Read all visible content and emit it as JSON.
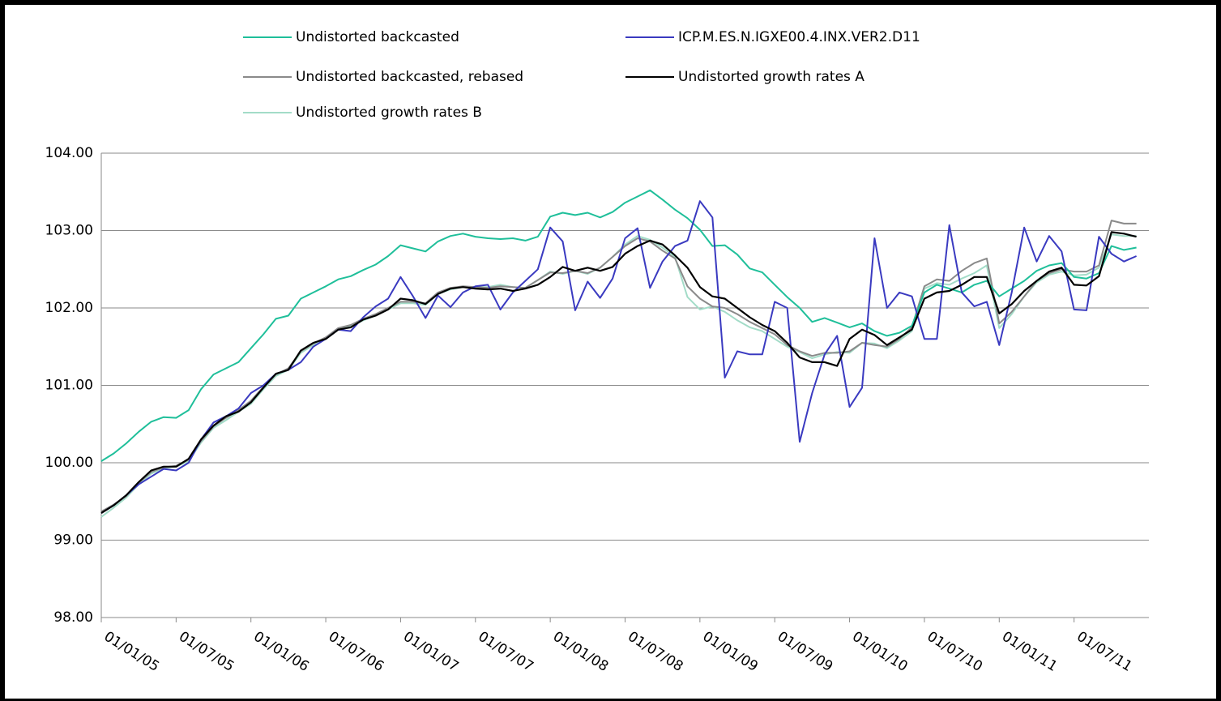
{
  "chart_data": {
    "type": "line",
    "categories": [
      "01/01/05",
      null,
      null,
      null,
      null,
      null,
      "01/07/05",
      null,
      null,
      null,
      null,
      null,
      "01/01/06",
      null,
      null,
      null,
      null,
      null,
      "01/07/06",
      null,
      null,
      null,
      null,
      null,
      "01/01/07",
      null,
      null,
      null,
      null,
      null,
      "01/07/07",
      null,
      null,
      null,
      null,
      null,
      "01/01/08",
      null,
      null,
      null,
      null,
      null,
      "01/07/08",
      null,
      null,
      null,
      null,
      null,
      "01/01/09",
      null,
      null,
      null,
      null,
      null,
      "01/07/09",
      null,
      null,
      null,
      null,
      null,
      "01/01/10",
      null,
      null,
      null,
      null,
      null,
      "01/07/10",
      null,
      null,
      null,
      null,
      null,
      "01/01/11",
      null,
      null,
      null,
      null,
      null,
      "01/07/11",
      null,
      null,
      null,
      null,
      null
    ],
    "series": [
      {
        "name": "Undistorted backcasted",
        "color": "#1fbf9a",
        "values": [
          100.02,
          100.12,
          100.25,
          100.4,
          100.53,
          100.59,
          100.58,
          100.68,
          100.95,
          101.14,
          101.22,
          101.3,
          101.48,
          101.66,
          101.86,
          101.9,
          102.12,
          102.2,
          102.28,
          102.37,
          102.41,
          102.49,
          102.56,
          102.67,
          102.81,
          102.77,
          102.73,
          102.86,
          102.93,
          102.96,
          102.92,
          102.9,
          102.89,
          102.9,
          102.87,
          102.92,
          103.18,
          103.23,
          103.2,
          103.23,
          103.17,
          103.24,
          103.36,
          103.44,
          103.52,
          103.4,
          103.27,
          103.16,
          103.01,
          102.8,
          102.81,
          102.69,
          102.51,
          102.46,
          102.3,
          102.14,
          102.0,
          101.82,
          101.87,
          101.81,
          101.75,
          101.8,
          101.7,
          101.64,
          101.68,
          101.77,
          102.2,
          102.3,
          102.25,
          102.2,
          102.3,
          102.35,
          102.15,
          102.25,
          102.35,
          102.48,
          102.55,
          102.58,
          102.4,
          102.38,
          102.45,
          102.8,
          102.75,
          102.78
        ]
      },
      {
        "name": "ICP.M.ES.N.IGXE00.4.INX.VER2.D11",
        "color": "#3a3ac0",
        "values": [
          99.35,
          99.45,
          99.58,
          99.72,
          99.82,
          99.92,
          99.9,
          100.0,
          100.3,
          100.52,
          100.6,
          100.7,
          100.9,
          101.0,
          101.15,
          101.2,
          101.3,
          101.5,
          101.6,
          101.72,
          101.7,
          101.88,
          102.02,
          102.12,
          102.4,
          102.15,
          101.87,
          102.16,
          102.01,
          102.2,
          102.28,
          102.3,
          101.98,
          102.2,
          102.35,
          102.5,
          103.04,
          102.86,
          101.97,
          102.34,
          102.13,
          102.38,
          102.9,
          103.03,
          102.26,
          102.6,
          102.8,
          102.87,
          103.38,
          103.17,
          101.1,
          101.44,
          101.4,
          101.4,
          102.08,
          102.0,
          100.27,
          100.9,
          101.4,
          101.64,
          100.72,
          100.97,
          102.9,
          102.0,
          102.2,
          102.15,
          101.6,
          101.6,
          103.07,
          102.2,
          102.02,
          102.08,
          101.52,
          102.2,
          103.04,
          102.6,
          102.93,
          102.73,
          101.98,
          101.97,
          102.92,
          102.7,
          102.6,
          102.67
        ]
      },
      {
        "name": "Undistorted backcasted, rebased",
        "color": "#8a8a8a",
        "values": [
          99.37,
          99.46,
          99.57,
          99.74,
          99.88,
          99.94,
          99.96,
          100.04,
          100.28,
          100.47,
          100.58,
          100.68,
          100.8,
          100.98,
          101.14,
          101.22,
          101.44,
          101.54,
          101.62,
          101.74,
          101.78,
          101.86,
          101.92,
          102.0,
          102.08,
          102.08,
          102.06,
          102.2,
          102.26,
          102.28,
          102.27,
          102.26,
          102.28,
          102.27,
          102.26,
          102.36,
          102.46,
          102.45,
          102.48,
          102.45,
          102.52,
          102.66,
          102.8,
          102.9,
          102.86,
          102.74,
          102.64,
          102.28,
          102.12,
          102.02,
          102.0,
          101.92,
          101.82,
          101.74,
          101.66,
          101.52,
          101.44,
          101.38,
          101.42,
          101.42,
          101.44,
          101.55,
          101.52,
          101.5,
          101.6,
          101.75,
          102.28,
          102.37,
          102.35,
          102.48,
          102.58,
          102.64,
          101.8,
          101.95,
          102.15,
          102.35,
          102.45,
          102.5,
          102.47,
          102.47,
          102.55,
          103.13,
          103.09,
          103.09
        ]
      },
      {
        "name": "Undistorted growth rates A",
        "color": "#000000",
        "values": [
          99.35,
          99.45,
          99.58,
          99.75,
          99.9,
          99.95,
          99.95,
          100.05,
          100.3,
          100.48,
          100.6,
          100.66,
          100.78,
          100.97,
          101.15,
          101.2,
          101.45,
          101.55,
          101.6,
          101.72,
          101.75,
          101.85,
          101.9,
          101.98,
          102.12,
          102.1,
          102.05,
          102.18,
          102.25,
          102.27,
          102.25,
          102.24,
          102.25,
          102.22,
          102.25,
          102.3,
          102.4,
          102.53,
          102.48,
          102.52,
          102.48,
          102.53,
          102.7,
          102.8,
          102.87,
          102.82,
          102.68,
          102.52,
          102.27,
          102.15,
          102.12,
          102.0,
          101.88,
          101.78,
          101.7,
          101.55,
          101.36,
          101.3,
          101.3,
          101.25,
          101.6,
          101.72,
          101.65,
          101.52,
          101.62,
          101.72,
          102.12,
          102.2,
          102.22,
          102.3,
          102.4,
          102.4,
          101.93,
          102.05,
          102.22,
          102.35,
          102.47,
          102.52,
          102.3,
          102.29,
          102.41,
          102.98,
          102.96,
          102.92
        ]
      },
      {
        "name": "Undistorted growth rates B",
        "color": "#a3dcc8",
        "values": [
          99.3,
          99.42,
          99.55,
          99.72,
          99.86,
          99.93,
          99.95,
          100.02,
          100.26,
          100.45,
          100.55,
          100.66,
          100.76,
          100.95,
          101.12,
          101.2,
          101.42,
          101.52,
          101.6,
          101.72,
          101.76,
          101.84,
          101.9,
          101.98,
          102.06,
          102.06,
          102.04,
          102.18,
          102.24,
          102.27,
          102.27,
          102.27,
          102.3,
          102.27,
          102.26,
          102.36,
          102.47,
          102.44,
          102.48,
          102.44,
          102.52,
          102.66,
          102.82,
          102.93,
          102.88,
          102.78,
          102.66,
          102.14,
          101.98,
          102.02,
          101.95,
          101.84,
          101.75,
          101.7,
          101.6,
          101.5,
          101.43,
          101.35,
          101.4,
          101.43,
          101.42,
          101.55,
          101.54,
          101.48,
          101.58,
          101.7,
          102.25,
          102.32,
          102.3,
          102.38,
          102.45,
          102.55,
          101.74,
          101.92,
          102.15,
          102.33,
          102.43,
          102.47,
          102.42,
          102.43,
          102.52,
          102.95,
          102.93,
          102.93
        ]
      }
    ],
    "ylim": [
      98,
      104
    ],
    "yticks": [
      {
        "value": 98,
        "label": "98.00"
      },
      {
        "value": 99,
        "label": "99.00"
      },
      {
        "value": 100,
        "label": "100.00"
      },
      {
        "value": 101,
        "label": "101.00"
      },
      {
        "value": 102,
        "label": "102.00"
      },
      {
        "value": 103,
        "label": "103.00"
      },
      {
        "value": 104,
        "label": "104.00"
      }
    ],
    "grid": true,
    "legend": "top"
  }
}
